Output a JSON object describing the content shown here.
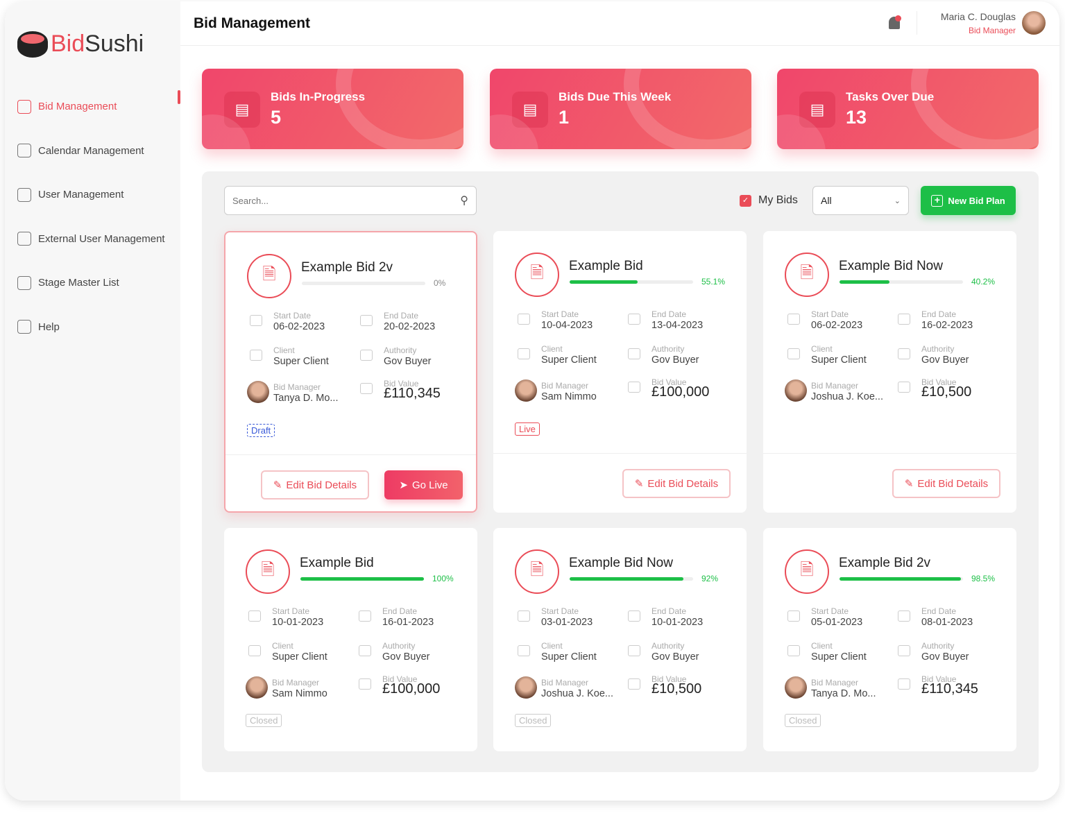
{
  "brand": {
    "name_a": "Bid",
    "name_b": "Sushi"
  },
  "sidebar": {
    "items": [
      {
        "label": "Bid Management",
        "icon": "bid-document-icon",
        "active": true
      },
      {
        "label": "Calendar Management",
        "icon": "calendar-icon"
      },
      {
        "label": "User Management",
        "icon": "user-gear-icon"
      },
      {
        "label": "External User Management",
        "icon": "external-user-icon"
      },
      {
        "label": "Stage Master List",
        "icon": "stage-list-icon"
      },
      {
        "label": "Help",
        "icon": "help-icon"
      }
    ]
  },
  "header": {
    "title": "Bid Management",
    "user_name": "Maria C. Douglas",
    "user_role": "Bid Manager"
  },
  "stats": [
    {
      "label": "Bids In-Progress",
      "value": "5",
      "icon": "bid-sign-icon"
    },
    {
      "label": "Bids Due This Week",
      "value": "1",
      "icon": "document-clock-icon"
    },
    {
      "label": "Tasks Over Due",
      "value": "13",
      "icon": "tasks-list-icon"
    }
  ],
  "toolbar": {
    "search_placeholder": "Search...",
    "my_bids_label": "My Bids",
    "my_bids_checked": true,
    "filter_value": "All",
    "new_bid_label": "New Bid Plan"
  },
  "labels": {
    "start": "Start Date",
    "end": "End Date",
    "client": "Client",
    "authority": "Authority",
    "manager": "Bid Manager",
    "value": "Bid Value",
    "edit": "Edit Bid Details",
    "go_live": "Go Live"
  },
  "colors": {
    "accent": "#ea4c57",
    "progress": "#1dbf47",
    "draft": "#3a5ad8"
  },
  "bids": [
    {
      "title": "Example Bid 2v",
      "progress": 0,
      "progress_label": "0%",
      "start": "06-02-2023",
      "end": "20-02-2023",
      "client": "Super Client",
      "authority": "Gov Buyer",
      "manager": "Tanya D. Mo...",
      "value": "£110,345",
      "status": "Draft",
      "actions": [
        "edit",
        "go_live"
      ],
      "selected": true
    },
    {
      "title": "Example Bid",
      "progress": 55.1,
      "progress_label": "55.1%",
      "start": "10-04-2023",
      "end": "13-04-2023",
      "client": "Super Client",
      "authority": "Gov Buyer",
      "manager": "Sam Nimmo",
      "value": "£100,000",
      "status": "Live",
      "actions": [
        "edit"
      ]
    },
    {
      "title": "Example Bid Now",
      "progress": 40.2,
      "progress_label": "40.2%",
      "start": "06-02-2023",
      "end": "16-02-2023",
      "client": "Super Client",
      "authority": "Gov Buyer",
      "manager": "Joshua J. Koe...",
      "value": "£10,500",
      "status": "",
      "actions": [
        "edit"
      ]
    },
    {
      "title": "Example Bid",
      "progress": 100,
      "progress_label": "100%",
      "start": "10-01-2023",
      "end": "16-01-2023",
      "client": "Super Client",
      "authority": "Gov Buyer",
      "manager": "Sam Nimmo",
      "value": "£100,000",
      "status": "Closed",
      "actions": []
    },
    {
      "title": "Example Bid Now",
      "progress": 92,
      "progress_label": "92%",
      "start": "03-01-2023",
      "end": "10-01-2023",
      "client": "Super Client",
      "authority": "Gov Buyer",
      "manager": "Joshua J. Koe...",
      "value": "£10,500",
      "status": "Closed",
      "actions": []
    },
    {
      "title": "Example Bid 2v",
      "progress": 98.5,
      "progress_label": "98.5%",
      "start": "05-01-2023",
      "end": "08-01-2023",
      "client": "Super Client",
      "authority": "Gov Buyer",
      "manager": "Tanya D. Mo...",
      "value": "£110,345",
      "status": "Closed",
      "actions": []
    }
  ]
}
